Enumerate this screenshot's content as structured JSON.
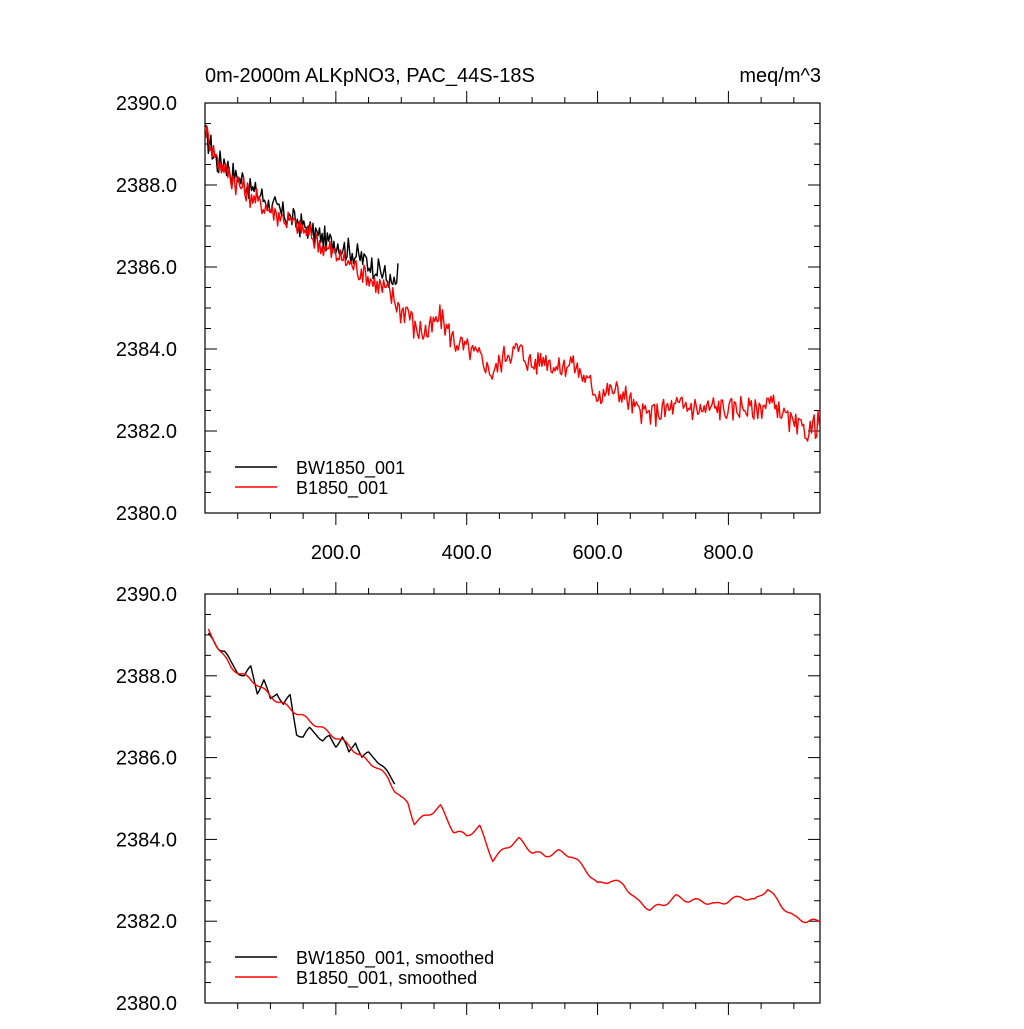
{
  "title_left": "0m-2000m ALKpNO3, PAC_44S-18S",
  "title_right": "meq/m^3",
  "chart_data": [
    {
      "type": "line",
      "xlim": [
        0,
        940
      ],
      "ylim": [
        2380,
        2390
      ],
      "xticks": [
        200,
        400,
        600,
        800
      ],
      "xtick_labels": [
        "200.0",
        "400.0",
        "600.0",
        "800.0"
      ],
      "yticks": [
        2380,
        2382,
        2384,
        2386,
        2388,
        2390
      ],
      "ytick_labels": [
        "2380.0",
        "2382.0",
        "2384.0",
        "2386.0",
        "2388.0",
        "2390.0"
      ],
      "legend_position": "bottom-left",
      "series": [
        {
          "name": "BW1850_001",
          "color": "#000000",
          "x": [
            1,
            10,
            20,
            30,
            40,
            50,
            60,
            70,
            80,
            90,
            100,
            110,
            120,
            130,
            140,
            150,
            160,
            170,
            180,
            190,
            200,
            210,
            220,
            230,
            240,
            250,
            260,
            270,
            280,
            290,
            295
          ],
          "values": [
            2389.2,
            2388.9,
            2388.5,
            2388.6,
            2388.3,
            2388.2,
            2388.1,
            2387.9,
            2387.8,
            2387.7,
            2387.5,
            2387.4,
            2387.3,
            2387.2,
            2387.1,
            2387.0,
            2386.9,
            2386.8,
            2386.7,
            2386.6,
            2386.6,
            2386.5,
            2386.4,
            2386.3,
            2386.2,
            2386.1,
            2386.0,
            2385.9,
            2385.7,
            2385.5,
            2385.8
          ]
        },
        {
          "name": "B1850_001",
          "color": "#ff0000",
          "x": [
            1,
            20,
            40,
            60,
            80,
            100,
            120,
            140,
            160,
            180,
            200,
            220,
            240,
            260,
            280,
            290,
            300,
            310,
            320,
            340,
            360,
            380,
            400,
            420,
            440,
            460,
            480,
            500,
            520,
            540,
            560,
            580,
            600,
            620,
            640,
            660,
            680,
            700,
            720,
            740,
            760,
            780,
            800,
            820,
            840,
            860,
            880,
            900,
            920,
            940
          ],
          "values": [
            2389.3,
            2388.6,
            2388.2,
            2387.9,
            2387.6,
            2387.4,
            2387.2,
            2387.0,
            2386.8,
            2386.5,
            2386.3,
            2386.1,
            2385.9,
            2385.6,
            2385.4,
            2385.2,
            2384.9,
            2385.0,
            2384.5,
            2384.4,
            2384.8,
            2384.2,
            2384.0,
            2383.8,
            2383.4,
            2383.9,
            2384.0,
            2383.6,
            2383.8,
            2383.5,
            2383.7,
            2383.3,
            2382.9,
            2383.0,
            2382.9,
            2382.5,
            2382.4,
            2382.5,
            2382.6,
            2382.6,
            2382.5,
            2382.6,
            2382.5,
            2382.6,
            2382.5,
            2382.7,
            2382.5,
            2382.1,
            2382.0,
            2382.2
          ]
        }
      ]
    },
    {
      "type": "line",
      "xlim": [
        0,
        940
      ],
      "ylim": [
        2380,
        2390
      ],
      "xticks": [
        200,
        400,
        600,
        800
      ],
      "xtick_labels": [
        "",
        "",
        "",
        ""
      ],
      "yticks": [
        2380,
        2382,
        2384,
        2386,
        2388,
        2390
      ],
      "ytick_labels": [
        "2380.0",
        "2382.0",
        "2384.0",
        "2386.0",
        "2388.0",
        "2390.0"
      ],
      "legend_position": "bottom-left",
      "series": [
        {
          "name": "BW1850_001, smoothed",
          "color": "#000000",
          "x": [
            5,
            20,
            30,
            40,
            50,
            60,
            70,
            80,
            90,
            100,
            110,
            120,
            130,
            140,
            150,
            160,
            170,
            180,
            190,
            200,
            210,
            220,
            230,
            240,
            250,
            260,
            270,
            280,
            290
          ],
          "values": [
            2389.0,
            2388.7,
            2388.6,
            2388.3,
            2388.1,
            2388.0,
            2388.2,
            2387.6,
            2387.9,
            2387.4,
            2387.6,
            2387.3,
            2387.5,
            2386.6,
            2386.5,
            2386.7,
            2386.6,
            2386.4,
            2386.5,
            2386.3,
            2386.5,
            2386.1,
            2386.4,
            2386.0,
            2386.1,
            2386.0,
            2385.8,
            2385.6,
            2385.4
          ]
        },
        {
          "name": "B1850_001, smoothed",
          "color": "#ff0000",
          "x": [
            5,
            20,
            40,
            60,
            80,
            100,
            120,
            140,
            160,
            180,
            200,
            220,
            240,
            260,
            280,
            290,
            300,
            310,
            320,
            340,
            360,
            380,
            400,
            420,
            440,
            460,
            480,
            500,
            520,
            540,
            560,
            580,
            600,
            620,
            640,
            660,
            680,
            700,
            720,
            740,
            760,
            780,
            800,
            820,
            840,
            860,
            880,
            900,
            920,
            940
          ],
          "values": [
            2389.1,
            2388.7,
            2388.2,
            2388.0,
            2387.8,
            2387.5,
            2387.3,
            2387.1,
            2386.9,
            2386.7,
            2386.5,
            2386.3,
            2386.0,
            2385.8,
            2385.5,
            2385.2,
            2385.0,
            2384.9,
            2384.4,
            2384.6,
            2384.8,
            2384.2,
            2384.1,
            2384.3,
            2383.5,
            2383.8,
            2384.0,
            2383.7,
            2383.6,
            2383.7,
            2383.6,
            2383.3,
            2382.9,
            2383.0,
            2382.9,
            2382.5,
            2382.3,
            2382.4,
            2382.6,
            2382.5,
            2382.5,
            2382.4,
            2382.5,
            2382.6,
            2382.5,
            2382.8,
            2382.4,
            2382.1,
            2382.0,
            2382.0
          ]
        }
      ]
    }
  ]
}
